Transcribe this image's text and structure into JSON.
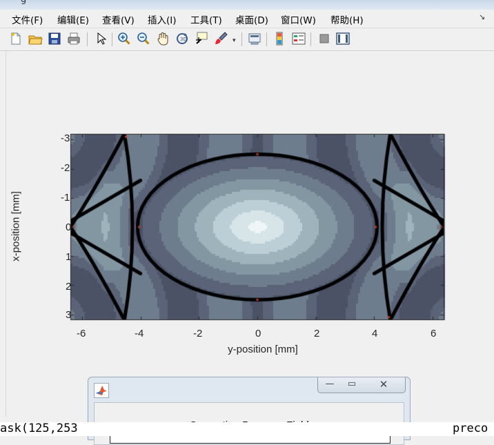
{
  "window": {
    "title": "g"
  },
  "menu": [
    "文件(F)",
    "编辑(E)",
    "查看(V)",
    "插入(I)",
    "工具(T)",
    "桌面(D)",
    "窗口(W)",
    "帮助(H)"
  ],
  "toolbar": {
    "icons": [
      "new-file-icon",
      "open-folder-icon",
      "save-icon",
      "print-icon",
      "pointer-icon",
      "zoom-in-icon",
      "zoom-out-icon",
      "pan-hand-icon",
      "rotate-3d-icon",
      "data-cursor-icon",
      "brush-icon",
      "link-plot-icon",
      "colorbar-icon",
      "legend-icon",
      "hide-plot-tools-icon",
      "show-plot-tools-icon"
    ]
  },
  "chart_data": {
    "type": "heatmap",
    "title": "",
    "xlabel": "y-position [mm]",
    "ylabel": "x-position [mm]",
    "xlim": [
      -6.4,
      6.4
    ],
    "ylim": [
      -3.2,
      3.2
    ],
    "y_axis_direction": "reversed",
    "xticks": [
      -6,
      -4,
      -2,
      0,
      2,
      4,
      6
    ],
    "yticks": [
      -3,
      -2,
      -1,
      0,
      1,
      2,
      3
    ],
    "colormap": "bone",
    "colors": {
      "dark": "#3a3c4e",
      "mid": "#8aa0ac",
      "light": "#eef4f6",
      "edge": "#000000",
      "spark": "#c83a1a"
    },
    "grid": false
  },
  "dialog": {
    "title": "Computing Pressure Field",
    "buttons": [
      "—",
      "▭",
      "✕"
    ],
    "progress": 0
  },
  "console": {
    "left_text": "ask(125,253",
    "right_text": "preco"
  }
}
